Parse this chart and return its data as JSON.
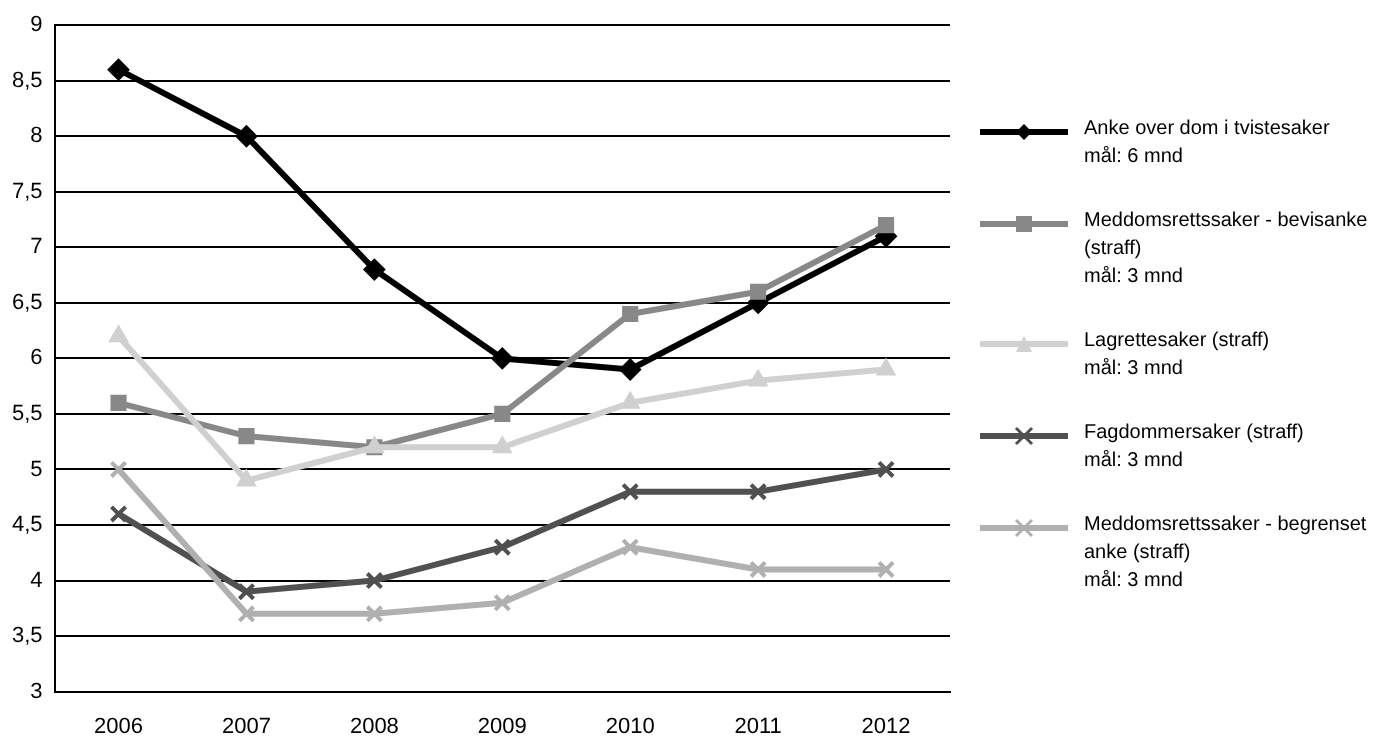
{
  "chart_data": {
    "type": "line",
    "categories": [
      "2006",
      "2007",
      "2008",
      "2009",
      "2010",
      "2011",
      "2012"
    ],
    "series": [
      {
        "name": "Anke over dom i tvistesaker\nmål: 6 mnd",
        "color": "#000000",
        "marker": "diamond",
        "values": [
          8.6,
          8.0,
          6.8,
          6.0,
          5.9,
          6.5,
          7.1
        ]
      },
      {
        "name": "Meddomsrettssaker - bevisanke\n(straff)\nmål: 3 mnd",
        "color": "#888888",
        "marker": "square",
        "values": [
          5.6,
          5.3,
          5.2,
          5.5,
          6.4,
          6.6,
          7.2
        ]
      },
      {
        "name": "Lagrettesaker (straff)\nmål: 3 mnd",
        "color": "#d0d0d0",
        "marker": "triangle",
        "values": [
          6.2,
          4.9,
          5.2,
          5.2,
          5.6,
          5.8,
          5.9
        ]
      },
      {
        "name": "Fagdommersaker (straff)\nmål: 3 mnd",
        "color": "#505050",
        "marker": "cross",
        "values": [
          4.6,
          3.9,
          4.0,
          4.3,
          4.8,
          4.8,
          5.0
        ]
      },
      {
        "name": "Meddomsrettssaker - begrenset\nanke (straff)\nmål: 3 mnd",
        "color": "#b0b0b0",
        "marker": "cross",
        "values": [
          5.0,
          3.7,
          3.7,
          3.8,
          4.3,
          4.1,
          4.1
        ]
      }
    ],
    "ylim": [
      3,
      9
    ],
    "yticks": [
      3,
      {
        "value": 3.5,
        "label": "3,5"
      },
      4,
      {
        "value": 4.5,
        "label": "4,5"
      },
      5,
      {
        "value": 5.5,
        "label": "5,5"
      },
      6,
      {
        "value": 6.5,
        "label": "6,5"
      },
      7,
      {
        "value": 7.5,
        "label": "7,5"
      },
      8,
      {
        "value": 8.5,
        "label": "8,5"
      },
      9
    ],
    "grid": "y",
    "legend": "right"
  }
}
